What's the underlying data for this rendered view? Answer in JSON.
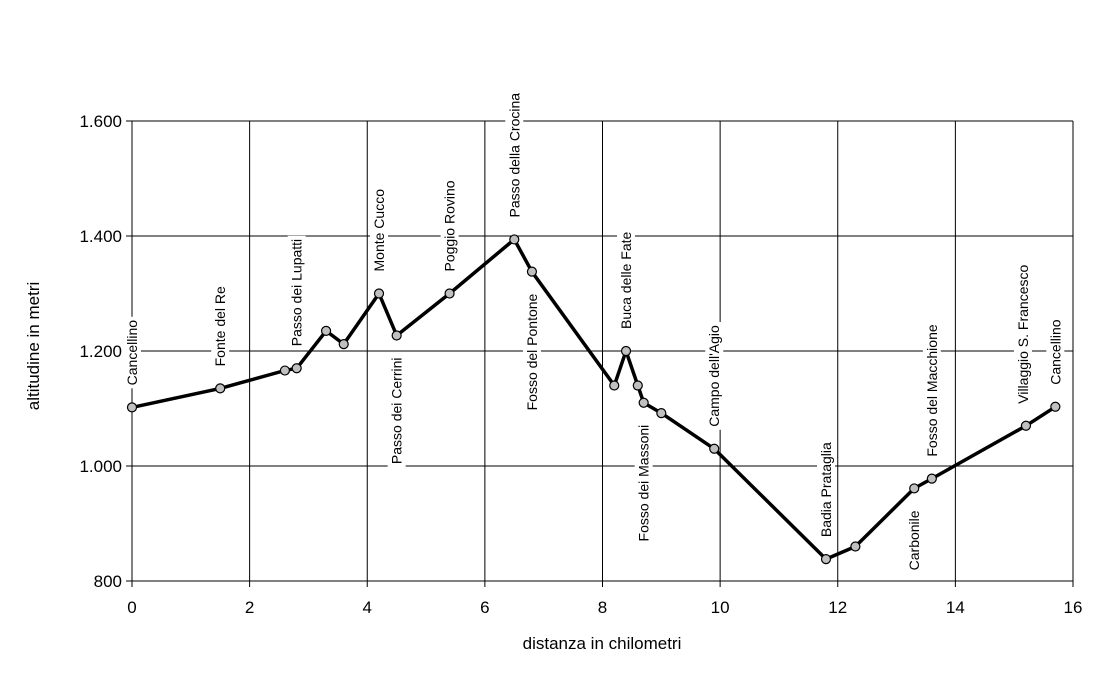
{
  "chart_data": {
    "type": "line",
    "xlabel": "distanza in chilometri",
    "ylabel": "altitudine  in metri",
    "xlim": [
      0,
      16
    ],
    "ylim": [
      800,
      1600
    ],
    "xticks": [
      0,
      2,
      4,
      6,
      8,
      10,
      12,
      14,
      16
    ],
    "xtick_labels": [
      "0",
      "2",
      "4",
      "6",
      "8",
      "10",
      "12",
      "14",
      "16"
    ],
    "yticks": [
      800,
      1000,
      1200,
      1400,
      1600
    ],
    "ytick_labels": [
      "800",
      "1.000",
      "1.200",
      "1.400",
      "1.600"
    ],
    "grid": true,
    "line_color": "#000000",
    "marker_color": "#c0c0c0",
    "points": [
      {
        "x": 0,
        "y": 1102,
        "label": "Cancellino"
      },
      {
        "x": 1.5,
        "y": 1135,
        "label": "Fonte del Re"
      },
      {
        "x": 2.6,
        "y": 1166,
        "label": ""
      },
      {
        "x": 2.8,
        "y": 1170,
        "label": "Passo dei Lupatti"
      },
      {
        "x": 3.3,
        "y": 1235,
        "label": ""
      },
      {
        "x": 3.6,
        "y": 1212,
        "label": ""
      },
      {
        "x": 4.2,
        "y": 1300,
        "label": "Monte Cucco"
      },
      {
        "x": 4.5,
        "y": 1227,
        "label": "Passo dei Cerrini"
      },
      {
        "x": 5.4,
        "y": 1300,
        "label": "Poggio Rovino"
      },
      {
        "x": 6.5,
        "y": 1394,
        "label": "Passo della Crocina"
      },
      {
        "x": 6.8,
        "y": 1338,
        "label": "Fosso del Pontone"
      },
      {
        "x": 8.2,
        "y": 1140,
        "label": ""
      },
      {
        "x": 8.4,
        "y": 1200,
        "label": "Buca delle Fate"
      },
      {
        "x": 8.6,
        "y": 1140,
        "label": ""
      },
      {
        "x": 8.7,
        "y": 1110,
        "label": "Fosso dei Massoni"
      },
      {
        "x": 9.0,
        "y": 1092,
        "label": ""
      },
      {
        "x": 9.9,
        "y": 1030,
        "label": "Campo dell'Agio"
      },
      {
        "x": 11.8,
        "y": 838,
        "label": "Badia Prataglia"
      },
      {
        "x": 12.3,
        "y": 860,
        "label": ""
      },
      {
        "x": 13.3,
        "y": 961,
        "label": "Carbonile"
      },
      {
        "x": 13.6,
        "y": 978,
        "label": "Fosso del Macchione"
      },
      {
        "x": 15.2,
        "y": 1070,
        "label": "Villaggio S. Francesco"
      },
      {
        "x": 15.7,
        "y": 1103,
        "label": "Cancellino"
      }
    ]
  }
}
